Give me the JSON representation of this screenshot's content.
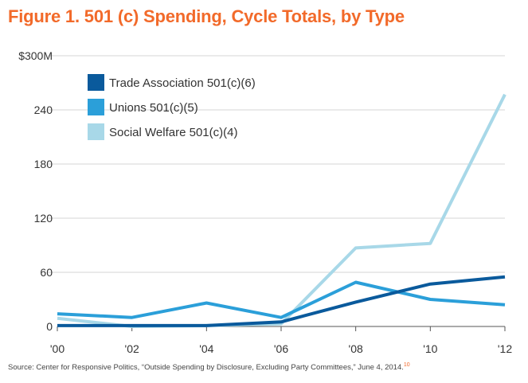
{
  "figure_title": "Figure 1. 501 (c) Spending, Cycle Totals, by Type",
  "source_text": "Source: Center for Responsive Politics, “Outside Spending by Disclosure, Excluding Party Committees,” June 4, 2014.",
  "source_footnote": "10",
  "chart_data": {
    "type": "line",
    "title": "Figure 1. 501 (c) Spending, Cycle Totals, by Type",
    "xlabel": "",
    "ylabel": "",
    "categories": [
      "'00",
      "'02",
      "'04",
      "'06",
      "'08",
      "'10",
      "'12"
    ],
    "y_ticks": [
      0,
      60,
      120,
      180,
      240,
      300
    ],
    "y_tick_labels": [
      "0",
      "60",
      "120",
      "180",
      "240",
      "$300M"
    ],
    "ylim": [
      0,
      300
    ],
    "grid": "horizontal",
    "legend_position": "top-left",
    "series": [
      {
        "name": "Trade Association 501(c)(6)",
        "color": "#0a5a9c",
        "values": [
          1,
          1,
          1,
          5,
          27,
          47,
          55
        ]
      },
      {
        "name": "Unions 501(c)(5)",
        "color": "#2b9fd9",
        "values": [
          14,
          10,
          26,
          10,
          49,
          30,
          24
        ]
      },
      {
        "name": "Social Welfare 501(c)(4)",
        "color": "#a8d8e8",
        "values": [
          9,
          0,
          1,
          3,
          87,
          92,
          257
        ]
      }
    ]
  }
}
